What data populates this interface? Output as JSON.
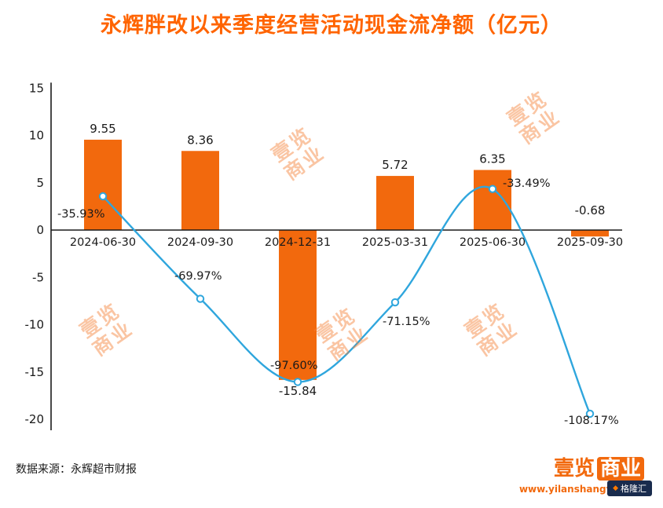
{
  "title": "永辉胖改以来季度经营活动现金流净额（亿元）",
  "watermark": {
    "line1": "壹览",
    "line2": "商业"
  },
  "footer": {
    "source": "数据来源：永辉超市财报",
    "brand": {
      "part1": "壹览",
      "part2": "商业"
    },
    "url": "www.yilanshangye.com",
    "badge": "格隆汇",
    "badge_icon": "◆"
  },
  "chart_data": {
    "type": "bar+line",
    "title": "永辉胖改以来季度经营活动现金流净额（亿元）",
    "categories": [
      "2024-06-30",
      "2024-09-30",
      "2024-12-31",
      "2025-03-31",
      "2025-06-30",
      "2025-09-30"
    ],
    "bar_values": [
      9.55,
      8.36,
      -15.84,
      5.72,
      6.35,
      -0.68
    ],
    "bar_value_labels": [
      "9.55",
      "8.36",
      "-15.84",
      "5.72",
      "6.35",
      "-0.68"
    ],
    "bar_color": "#f2690d",
    "line_values_percent": [
      -35.93,
      -69.97,
      -97.6,
      -71.15,
      -33.49,
      -108.17
    ],
    "line_point_labels": [
      "-35.93%",
      "-69.97%",
      "-97.60%",
      "-71.15%",
      "-33.49%",
      "-108.17%"
    ],
    "line_color": "#2fa6dd",
    "primary_axis": {
      "ticks": [
        15,
        10,
        5,
        0,
        -5,
        -10,
        -15,
        -20
      ],
      "min": -20,
      "max": 15
    },
    "secondary_axis_mapping": {
      "percent_at_value_max": 0,
      "percent_at_value_min": -110
    },
    "grid": false,
    "legend": false,
    "label_color": "#1a1a1a"
  }
}
